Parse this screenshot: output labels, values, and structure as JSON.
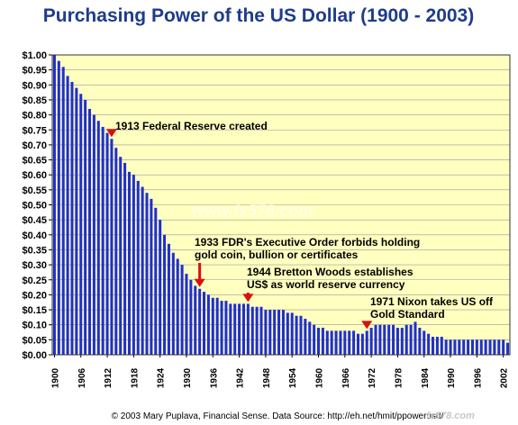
{
  "chart_data": {
    "type": "bar",
    "title": "Purchasing Power of the US Dollar (1900 - 2003)",
    "xlabel": "",
    "ylabel": "",
    "ylim": [
      0,
      1.0
    ],
    "y_tick_labels": [
      "$1.00",
      "$0.95",
      "$0.90",
      "$0.85",
      "$0.80",
      "$0.75",
      "$0.70",
      "$0.65",
      "$0.60",
      "$0.55",
      "$0.50",
      "$0.45",
      "$0.40",
      "$0.35",
      "$0.30",
      "$0.25",
      "$0.20",
      "$0.15",
      "$0.10",
      "$0.05",
      "$0.00"
    ],
    "x_tick_labels": [
      "1900",
      "1906",
      "1912",
      "1918",
      "1924",
      "1930",
      "1936",
      "1942",
      "1948",
      "1954",
      "1960",
      "1966",
      "1972",
      "1978",
      "1984",
      "1990",
      "1996",
      "2002"
    ],
    "grid": true,
    "bar_color": "#1f2fd0",
    "plot_background": "#ffffc0",
    "categories": [
      1900,
      1901,
      1902,
      1903,
      1904,
      1905,
      1906,
      1907,
      1908,
      1909,
      1910,
      1911,
      1912,
      1913,
      1914,
      1915,
      1916,
      1917,
      1918,
      1919,
      1920,
      1921,
      1922,
      1923,
      1924,
      1925,
      1926,
      1927,
      1928,
      1929,
      1930,
      1931,
      1932,
      1933,
      1934,
      1935,
      1936,
      1937,
      1938,
      1939,
      1940,
      1941,
      1942,
      1943,
      1944,
      1945,
      1946,
      1947,
      1948,
      1949,
      1950,
      1951,
      1952,
      1953,
      1954,
      1955,
      1956,
      1957,
      1958,
      1959,
      1960,
      1961,
      1962,
      1963,
      1964,
      1965,
      1966,
      1967,
      1968,
      1969,
      1970,
      1971,
      1972,
      1973,
      1974,
      1975,
      1976,
      1977,
      1978,
      1979,
      1980,
      1981,
      1982,
      1983,
      1984,
      1985,
      1986,
      1987,
      1988,
      1989,
      1990,
      1991,
      1992,
      1993,
      1994,
      1995,
      1996,
      1997,
      1998,
      1999,
      2000,
      2001,
      2002,
      2003
    ],
    "values": [
      1.0,
      0.98,
      0.96,
      0.93,
      0.91,
      0.89,
      0.87,
      0.85,
      0.82,
      0.8,
      0.78,
      0.76,
      0.74,
      0.72,
      0.69,
      0.66,
      0.64,
      0.61,
      0.6,
      0.58,
      0.56,
      0.54,
      0.52,
      0.49,
      0.45,
      0.4,
      0.37,
      0.34,
      0.32,
      0.3,
      0.27,
      0.25,
      0.23,
      0.22,
      0.21,
      0.2,
      0.19,
      0.19,
      0.18,
      0.18,
      0.17,
      0.17,
      0.17,
      0.17,
      0.17,
      0.16,
      0.16,
      0.16,
      0.15,
      0.15,
      0.15,
      0.15,
      0.15,
      0.14,
      0.14,
      0.13,
      0.13,
      0.12,
      0.11,
      0.1,
      0.09,
      0.09,
      0.08,
      0.08,
      0.08,
      0.08,
      0.08,
      0.08,
      0.08,
      0.07,
      0.07,
      0.08,
      0.09,
      0.1,
      0.1,
      0.1,
      0.1,
      0.1,
      0.09,
      0.09,
      0.1,
      0.1,
      0.11,
      0.09,
      0.08,
      0.07,
      0.06,
      0.06,
      0.06,
      0.05,
      0.05,
      0.05,
      0.05,
      0.05,
      0.05,
      0.05,
      0.05,
      0.05,
      0.05,
      0.05,
      0.05,
      0.05,
      0.05,
      0.04
    ],
    "annotations": [
      {
        "year": 1913,
        "lines": [
          "1913 Federal Reserve created"
        ]
      },
      {
        "year": 1933,
        "lines": [
          "1933 FDR's Executive Order forbids holding",
          "gold coin, bullion or certificates"
        ]
      },
      {
        "year": 1944,
        "lines": [
          "1944 Bretton Woods establishes",
          "US$ as world reserve currency"
        ]
      },
      {
        "year": 1971,
        "lines": [
          "1971 Nixon takes US off",
          "Gold Standard"
        ]
      }
    ],
    "watermark": "www.fx578.com",
    "footer": "© 2003 Mary Puplava, Financial Sense. Data Source:  http://eh.net/hmit/ppowerusd/",
    "footer_watermark": "fx578.com",
    "annotation_arrow_color": "#d81010"
  }
}
